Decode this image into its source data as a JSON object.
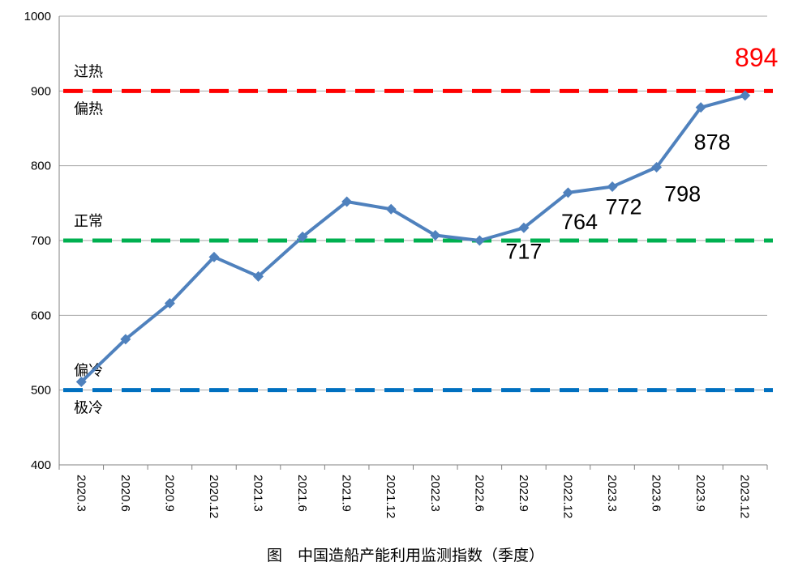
{
  "chart_data": {
    "type": "line",
    "title": "",
    "caption": "图　中国造船产能利用监测指数（季度）",
    "xlabel": "",
    "ylabel": "",
    "ylim": [
      400,
      1000
    ],
    "yticks": [
      400,
      500,
      600,
      700,
      800,
      900,
      1000
    ],
    "grid": true,
    "categories": [
      "2020.3",
      "2020.6",
      "2020.9",
      "2020.12",
      "2021.3",
      "2021.6",
      "2021.9",
      "2021.12",
      "2022.3",
      "2022.6",
      "2022.9",
      "2022.12",
      "2023.3",
      "2023.6",
      "2023.9",
      "2023.12"
    ],
    "series": [
      {
        "name": "",
        "color": "#4f81bd",
        "values": [
          511,
          568,
          616,
          678,
          652,
          705,
          752,
          742,
          707,
          700,
          717,
          764,
          772,
          798,
          878,
          894
        ]
      }
    ],
    "data_labels": [
      {
        "index": 10,
        "text": "717",
        "color": "#000000"
      },
      {
        "index": 11,
        "text": "764",
        "color": "#000000"
      },
      {
        "index": 12,
        "text": "772",
        "color": "#000000"
      },
      {
        "index": 13,
        "text": "798",
        "color": "#000000"
      },
      {
        "index": 14,
        "text": "878",
        "color": "#000000"
      },
      {
        "index": 15,
        "text": "894",
        "color": "#ff0000"
      }
    ],
    "reference_lines": [
      {
        "value": 900,
        "color": "#ff0000"
      },
      {
        "value": 700,
        "color": "#00b050"
      },
      {
        "value": 500,
        "color": "#0070c0"
      }
    ],
    "zone_labels": [
      {
        "text": "过热",
        "near": 900,
        "side": "above"
      },
      {
        "text": "偏热",
        "near": 900,
        "side": "below"
      },
      {
        "text": "正常",
        "near": 700,
        "side": "above"
      },
      {
        "text": "偏冷",
        "near": 500,
        "side": "above"
      },
      {
        "text": "极冷",
        "near": 500,
        "side": "below"
      }
    ]
  }
}
